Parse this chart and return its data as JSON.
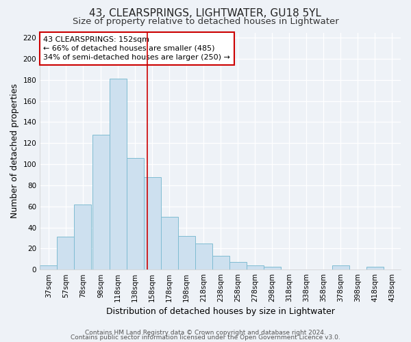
{
  "title": "43, CLEARSPRINGS, LIGHTWATER, GU18 5YL",
  "subtitle": "Size of property relative to detached houses in Lightwater",
  "xlabel": "Distribution of detached houses by size in Lightwater",
  "ylabel": "Number of detached properties",
  "bin_left_edges": [
    27,
    47,
    67,
    88,
    108,
    128,
    148,
    168,
    188,
    208,
    228,
    248,
    268,
    288,
    308,
    328,
    348,
    368,
    388,
    408,
    428
  ],
  "bin_width": 20,
  "bin_labels": [
    "37sqm",
    "57sqm",
    "78sqm",
    "98sqm",
    "118sqm",
    "138sqm",
    "158sqm",
    "178sqm",
    "198sqm",
    "218sqm",
    "238sqm",
    "258sqm",
    "278sqm",
    "298sqm",
    "318sqm",
    "338sqm",
    "358sqm",
    "378sqm",
    "398sqm",
    "418sqm",
    "438sqm"
  ],
  "counts": [
    4,
    31,
    62,
    128,
    181,
    106,
    88,
    50,
    32,
    25,
    13,
    7,
    4,
    3,
    0,
    0,
    0,
    4,
    0,
    3,
    0
  ],
  "bar_facecolor": "#cde0ef",
  "bar_edgecolor": "#7fbcd2",
  "ylim": [
    0,
    225
  ],
  "yticks": [
    0,
    20,
    40,
    60,
    80,
    100,
    120,
    140,
    160,
    180,
    200,
    220
  ],
  "xlim_left": 27,
  "xlim_right": 448,
  "red_line_x": 152,
  "annotation_line1": "43 CLEARSPRINGS: 152sqm",
  "annotation_line2": "← 66% of detached houses are smaller (485)",
  "annotation_line3": "34% of semi-detached houses are larger (250) →",
  "footer1": "Contains HM Land Registry data © Crown copyright and database right 2024.",
  "footer2": "Contains public sector information licensed under the Open Government Licence v3.0.",
  "bg_color": "#eef2f7",
  "grid_color": "#ffffff",
  "title_fontsize": 11,
  "subtitle_fontsize": 9.5,
  "label_fontsize": 9,
  "tick_fontsize": 7.5,
  "footer_fontsize": 6.5,
  "annotation_fontsize": 8
}
